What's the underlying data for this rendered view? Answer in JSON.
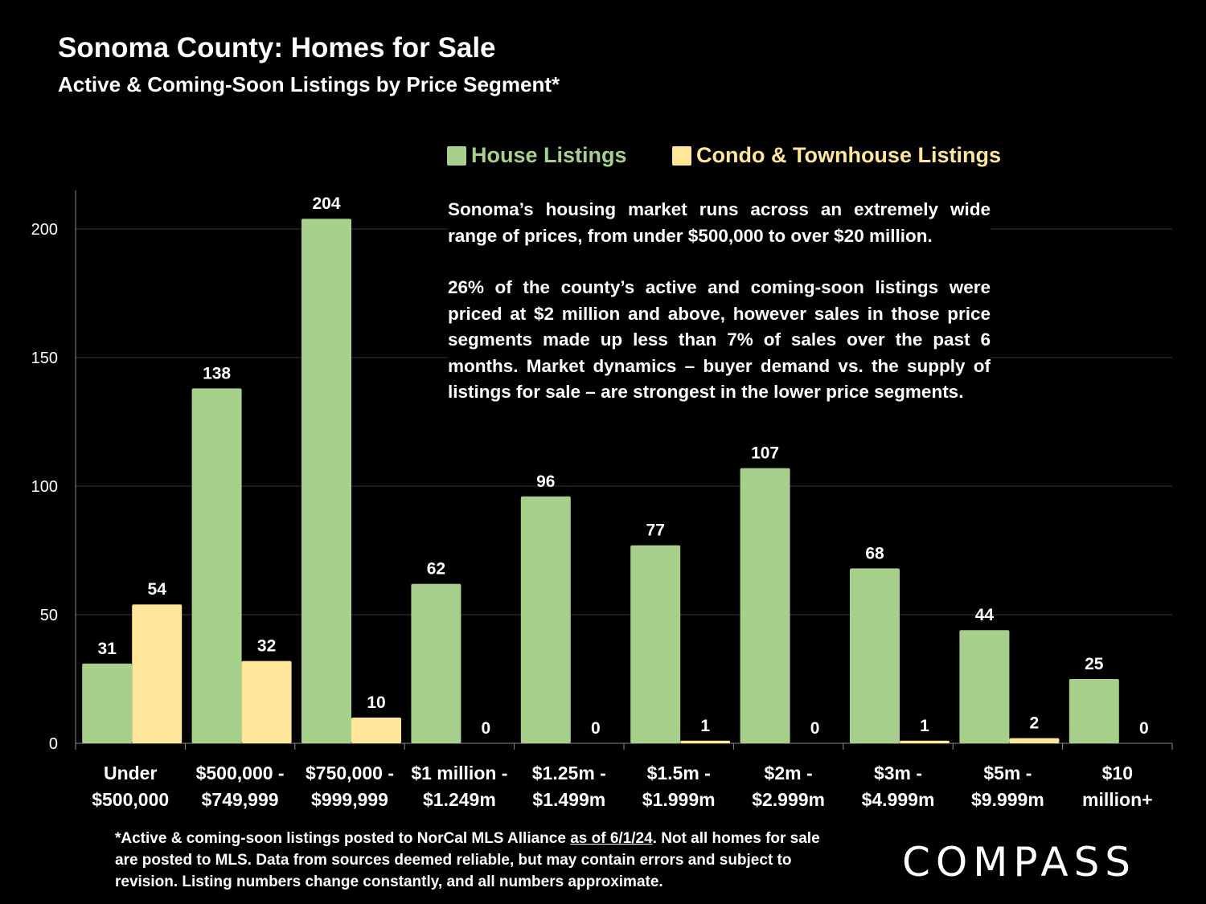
{
  "header": {
    "title": "Sonoma County: Homes for Sale",
    "subtitle": "Active & Coming-Soon Listings by Price Segment*"
  },
  "annotation": {
    "p1": "Sonoma’s housing market runs across an extremely wide range of prices, from under $500,000 to over $20 million.",
    "p2": "26% of the county’s active and coming-soon listings were priced at $2 million and above, however sales in those price segments made up less than 7% of sales over the past 6 months. Market dynamics – buyer demand vs. the supply of listings for sale – are strongest in the lower price segments."
  },
  "footnote": {
    "part1": "*Active & coming-soon listings posted to NorCal MLS Alliance ",
    "date": "as of 6/1/24",
    "part2": ". Not all homes for sale are posted to MLS. Data from sources deemed reliable, but may contain errors and subject to revision. Listing numbers change constantly, and all numbers approximate."
  },
  "logo": {
    "text": "COMPASS"
  },
  "colors": {
    "house": "#a8d08d",
    "condo": "#ffe699",
    "background": "#000000",
    "grid": "#3a3a3a"
  },
  "chart_data": {
    "type": "bar",
    "title": "Sonoma County: Homes for Sale",
    "xlabel": "",
    "ylabel": "",
    "ylim": [
      0,
      215
    ],
    "yticks": [
      0,
      50,
      100,
      150,
      200
    ],
    "grid": true,
    "legend_position": "top-right",
    "categories": [
      [
        "Under",
        "$500,000"
      ],
      [
        "$500,000 -",
        "$749,999"
      ],
      [
        "$750,000 -",
        "$999,999"
      ],
      [
        "$1 million -",
        "$1.249m"
      ],
      [
        "$1.25m -",
        "$1.499m"
      ],
      [
        "$1.5m -",
        "$1.999m"
      ],
      [
        "$2m -",
        "$2.999m"
      ],
      [
        "$3m -",
        "$4.999m"
      ],
      [
        "$5m -",
        "$9.999m"
      ],
      [
        "$10",
        "million+"
      ]
    ],
    "series": [
      {
        "name": "House Listings",
        "values": [
          31,
          138,
          204,
          62,
          96,
          77,
          107,
          68,
          44,
          25
        ]
      },
      {
        "name": "Condo & Townhouse Listings",
        "values": [
          54,
          32,
          10,
          0,
          0,
          1,
          0,
          1,
          2,
          0
        ]
      }
    ]
  }
}
